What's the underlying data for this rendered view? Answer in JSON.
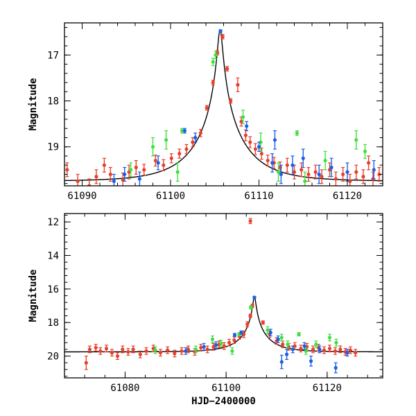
{
  "colors": {
    "red": "#e8402a",
    "green": "#3fe03f",
    "blue": "#1b5fe6",
    "axis": "#000000"
  },
  "chart_data": [
    {
      "type": "scatter",
      "panel": "top",
      "xlabel": "",
      "ylabel": "Magnitude",
      "xlim": [
        61088,
        61124
      ],
      "ylim": [
        19.85,
        16.3
      ],
      "y_inverted": true,
      "x_ticks": [
        61090,
        61100,
        61110,
        61120
      ],
      "x_tick_labels": [
        "61090",
        "61100",
        "61110",
        "61120"
      ],
      "y_ticks": [
        17,
        18,
        19
      ],
      "y_tick_labels": [
        "17",
        "18",
        "19"
      ],
      "model": {
        "t0": 61105.6,
        "peak_mag": 16.45,
        "base_mag": 19.75,
        "tE": 5.5,
        "u0": 0.048
      },
      "series": [
        {
          "name": "red",
          "color": "#e8402a",
          "points": [
            [
              61088.3,
              19.5,
              0.15
            ],
            [
              61089.5,
              19.75,
              0.15
            ],
            [
              61090.8,
              19.85,
              0.15
            ],
            [
              61091.6,
              19.65,
              0.15
            ],
            [
              61092.5,
              19.4,
              0.15
            ],
            [
              61093.2,
              19.6,
              0.15
            ],
            [
              61094.6,
              19.72,
              0.15
            ],
            [
              61095.3,
              19.55,
              0.15
            ],
            [
              61096.1,
              19.45,
              0.15
            ],
            [
              61097.0,
              19.5,
              0.12
            ],
            [
              61098.3,
              19.3,
              0.12
            ],
            [
              61099.2,
              19.4,
              0.12
            ],
            [
              61100.1,
              19.25,
              0.1
            ],
            [
              61101.0,
              19.15,
              0.1
            ],
            [
              61101.8,
              19.05,
              0.1
            ],
            [
              61102.5,
              18.9,
              0.1
            ],
            [
              61103.4,
              18.7,
              0.08
            ],
            [
              61104.1,
              18.15,
              0.05
            ],
            [
              61104.8,
              17.6,
              0.05
            ],
            [
              61105.3,
              16.95,
              0.05
            ],
            [
              61105.9,
              16.6,
              0.05
            ],
            [
              61106.4,
              17.3,
              0.05
            ],
            [
              61106.8,
              18.0,
              0.05
            ],
            [
              61107.6,
              17.65,
              0.15
            ],
            [
              61108.0,
              18.45,
              0.1
            ],
            [
              61108.5,
              18.75,
              0.12
            ],
            [
              61109.0,
              18.9,
              0.12
            ],
            [
              61109.6,
              19.05,
              0.12
            ],
            [
              61110.3,
              19.15,
              0.12
            ],
            [
              61111.0,
              19.3,
              0.12
            ],
            [
              61111.7,
              19.35,
              0.12
            ],
            [
              61112.4,
              19.45,
              0.12
            ],
            [
              61113.2,
              19.4,
              0.15
            ],
            [
              61114.0,
              19.55,
              0.15
            ],
            [
              61114.8,
              19.5,
              0.15
            ],
            [
              61115.6,
              19.6,
              0.15
            ],
            [
              61116.4,
              19.55,
              0.15
            ],
            [
              61117.1,
              19.65,
              0.15
            ],
            [
              61118.0,
              19.5,
              0.15
            ],
            [
              61118.7,
              19.7,
              0.15
            ],
            [
              61119.5,
              19.6,
              0.15
            ],
            [
              61120.3,
              19.75,
              0.15
            ],
            [
              61121.0,
              19.55,
              0.15
            ],
            [
              61121.8,
              19.65,
              0.15
            ],
            [
              61122.4,
              19.35,
              0.15
            ],
            [
              61122.9,
              19.7,
              0.15
            ],
            [
              61123.6,
              19.6,
              0.15
            ]
          ]
        },
        {
          "name": "green",
          "color": "#3fe03f",
          "points": [
            [
              61095.5,
              19.5,
              0.15
            ],
            [
              61098.0,
              19.0,
              0.2
            ],
            [
              61099.5,
              18.85,
              0.2
            ],
            [
              61100.8,
              19.55,
              0.2
            ],
            [
              61101.3,
              18.65,
              0.05
            ],
            [
              61104.8,
              17.15,
              0.08
            ],
            [
              61105.1,
              17.0,
              0.08
            ],
            [
              61108.2,
              18.35,
              0.15
            ],
            [
              61110.2,
              18.9,
              0.2
            ],
            [
              61112.2,
              19.55,
              0.2
            ],
            [
              61114.3,
              18.7,
              0.05
            ],
            [
              61115.2,
              19.75,
              0.2
            ],
            [
              61117.5,
              19.3,
              0.2
            ],
            [
              61121.0,
              18.85,
              0.2
            ],
            [
              61122.0,
              19.1,
              0.15
            ]
          ]
        },
        {
          "name": "blue",
          "color": "#1b5fe6",
          "points": [
            [
              61093.6,
              19.75,
              0.15
            ],
            [
              61094.8,
              19.6,
              0.15
            ],
            [
              61096.5,
              19.7,
              0.15
            ],
            [
              61098.6,
              19.35,
              0.15
            ],
            [
              61101.6,
              18.65,
              0.05
            ],
            [
              61102.8,
              18.8,
              0.1
            ],
            [
              61105.65,
              16.48,
              0.03
            ],
            [
              61108.6,
              18.55,
              0.1
            ],
            [
              61110.0,
              19.0,
              0.1
            ],
            [
              61111.5,
              19.35,
              0.2
            ],
            [
              61111.8,
              18.85,
              0.2
            ],
            [
              61112.5,
              19.6,
              0.2
            ],
            [
              61113.8,
              19.4,
              0.2
            ],
            [
              61115.0,
              19.25,
              0.2
            ],
            [
              61116.8,
              19.6,
              0.2
            ],
            [
              61118.2,
              19.45,
              0.2
            ],
            [
              61120.0,
              19.55,
              0.2
            ],
            [
              61123.0,
              19.5,
              0.2
            ]
          ]
        }
      ]
    },
    {
      "type": "scatter",
      "panel": "bottom",
      "xlabel": "HJD−2400000",
      "ylabel": "Magnitude",
      "xlim": [
        61068,
        61131
      ],
      "ylim": [
        21.3,
        11.5
      ],
      "y_inverted": true,
      "x_ticks": [
        61080,
        61100,
        61120
      ],
      "x_tick_labels": [
        "61080",
        "61100",
        "61120"
      ],
      "y_ticks": [
        12,
        14,
        16,
        18,
        20
      ],
      "y_tick_labels": [
        "12",
        "14",
        "16",
        "18",
        "20"
      ],
      "model": {
        "t0": 61105.6,
        "peak_mag": 16.45,
        "base_mag": 19.75,
        "tE": 5.5,
        "u0": 0.048
      },
      "series": [
        {
          "name": "red",
          "color": "#e8402a",
          "points": [
            [
              61072.3,
              20.4,
              0.4
            ],
            [
              61073.0,
              19.6,
              0.2
            ],
            [
              61074.2,
              19.5,
              0.2
            ],
            [
              61075.1,
              19.7,
              0.2
            ],
            [
              61076.3,
              19.55,
              0.2
            ],
            [
              61077.4,
              19.8,
              0.2
            ],
            [
              61078.5,
              20.0,
              0.2
            ],
            [
              61079.5,
              19.6,
              0.2
            ],
            [
              61080.6,
              19.75,
              0.2
            ],
            [
              61081.6,
              19.6,
              0.2
            ],
            [
              61083.0,
              19.9,
              0.2
            ],
            [
              61084.2,
              19.7,
              0.2
            ],
            [
              61085.6,
              19.55,
              0.2
            ],
            [
              61087.0,
              19.8,
              0.2
            ],
            [
              61088.4,
              19.65,
              0.2
            ],
            [
              61089.8,
              19.85,
              0.2
            ],
            [
              61091.2,
              19.7,
              0.2
            ],
            [
              61092.5,
              19.6,
              0.2
            ],
            [
              61093.8,
              19.75,
              0.2
            ],
            [
              61095.0,
              19.5,
              0.2
            ],
            [
              61096.3,
              19.6,
              0.2
            ],
            [
              61097.5,
              19.45,
              0.2
            ],
            [
              61098.6,
              19.3,
              0.2
            ],
            [
              61099.6,
              19.4,
              0.2
            ],
            [
              61100.6,
              19.2,
              0.2
            ],
            [
              61101.6,
              19.05,
              0.2
            ],
            [
              61102.6,
              18.8,
              0.2
            ],
            [
              61103.5,
              18.7,
              0.2
            ],
            [
              61104.2,
              18.1,
              0.15
            ],
            [
              61104.8,
              17.6,
              0.1
            ],
            [
              61105.2,
              17.0,
              0.1
            ],
            [
              61104.8,
              11.95,
              0.15
            ],
            [
              61107.3,
              18.0,
              0.1
            ],
            [
              61108.6,
              18.7,
              0.2
            ],
            [
              61110.0,
              19.1,
              0.2
            ],
            [
              61111.2,
              19.3,
              0.2
            ],
            [
              61112.4,
              19.45,
              0.2
            ],
            [
              61113.6,
              19.4,
              0.2
            ],
            [
              61114.8,
              19.55,
              0.2
            ],
            [
              61116.0,
              19.45,
              0.2
            ],
            [
              61117.2,
              19.6,
              0.2
            ],
            [
              61118.3,
              19.5,
              0.2
            ],
            [
              61119.4,
              19.65,
              0.2
            ],
            [
              61120.5,
              19.55,
              0.2
            ],
            [
              61121.6,
              19.7,
              0.2
            ],
            [
              61122.6,
              19.6,
              0.2
            ],
            [
              61123.6,
              19.75,
              0.2
            ],
            [
              61124.6,
              19.65,
              0.2
            ],
            [
              61125.6,
              19.8,
              0.2
            ]
          ]
        },
        {
          "name": "green",
          "color": "#3fe03f",
          "points": [
            [
              61086.0,
              19.65,
              0.2
            ],
            [
              61094.0,
              19.6,
              0.2
            ],
            [
              61097.3,
              19.0,
              0.2
            ],
            [
              61099.0,
              19.25,
              0.2
            ],
            [
              61101.2,
              19.7,
              0.2
            ],
            [
              61102.6,
              18.7,
              0.1
            ],
            [
              61104.9,
              17.1,
              0.1
            ],
            [
              61108.2,
              18.45,
              0.2
            ],
            [
              61111.0,
              18.9,
              0.2
            ],
            [
              61112.2,
              19.3,
              0.2
            ],
            [
              61114.4,
              18.7,
              0.1
            ],
            [
              61115.8,
              19.7,
              0.2
            ],
            [
              61117.8,
              19.3,
              0.2
            ],
            [
              61120.5,
              18.9,
              0.2
            ],
            [
              61121.8,
              19.2,
              0.2
            ]
          ]
        },
        {
          "name": "blue",
          "color": "#1b5fe6",
          "points": [
            [
              61092.0,
              19.7,
              0.2
            ],
            [
              61095.6,
              19.45,
              0.2
            ],
            [
              61098.0,
              19.35,
              0.2
            ],
            [
              61101.7,
              18.75,
              0.1
            ],
            [
              61103.0,
              18.6,
              0.1
            ],
            [
              61105.6,
              16.5,
              0.05
            ],
            [
              61108.8,
              18.6,
              0.2
            ],
            [
              61110.3,
              19.0,
              0.2
            ],
            [
              61111.0,
              20.35,
              0.4
            ],
            [
              61112.0,
              19.9,
              0.3
            ],
            [
              61113.2,
              19.6,
              0.2
            ],
            [
              61115.5,
              19.4,
              0.2
            ],
            [
              61116.8,
              20.3,
              0.3
            ],
            [
              61118.5,
              19.6,
              0.2
            ],
            [
              61121.7,
              20.7,
              0.3
            ],
            [
              61124.0,
              19.8,
              0.2
            ]
          ]
        }
      ]
    }
  ]
}
